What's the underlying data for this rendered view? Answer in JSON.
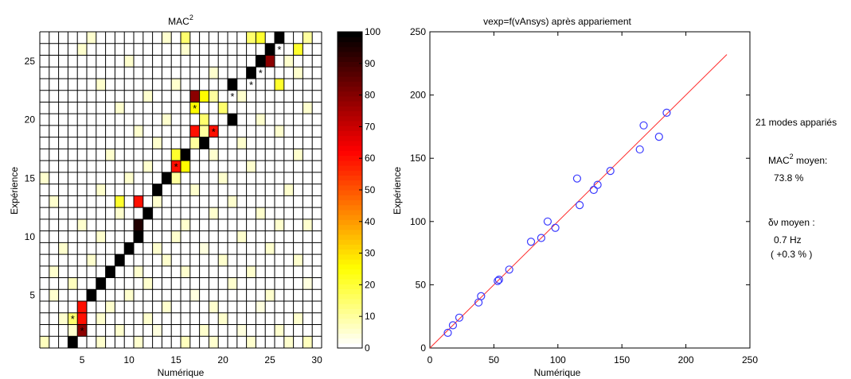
{
  "colors": {
    "colormap": "hot (reversed: white = 0, black = 100)",
    "scatter_marker": "#3b3bff",
    "fit_line": "#ff2a2a",
    "grid_line": "#000000"
  },
  "annotations": {
    "count": "21 modes appariés",
    "mac_label": "MAC",
    "mac_sup": "2",
    "mac_suffix": " moyen:",
    "mac_value": "73.8 %",
    "dv_label": "δν moyen :",
    "dv_value": "0.7 Hz",
    "dv_percent": "( +0.3 % )"
  },
  "chart_data": [
    {
      "type": "heatmap",
      "title": "MAC",
      "title_sup": "2",
      "xlabel": "Numérique",
      "ylabel": "Expérience",
      "xlim": [
        1,
        30
      ],
      "ylim": [
        1,
        27
      ],
      "xticks": [
        5,
        10,
        15,
        20,
        25,
        30
      ],
      "yticks": [
        5,
        10,
        15,
        20,
        25
      ],
      "colorbar": {
        "min": 0,
        "max": 100,
        "ticks": [
          0,
          10,
          20,
          30,
          40,
          50,
          60,
          70,
          80,
          90,
          100
        ]
      },
      "default_value": 0,
      "cells": [
        [
          1,
          1,
          6
        ],
        [
          4,
          1,
          100
        ],
        [
          5,
          2,
          80
        ],
        [
          7,
          1,
          5
        ],
        [
          11,
          1,
          5
        ],
        [
          16,
          1,
          6
        ],
        [
          19,
          1,
          4
        ],
        [
          23,
          1,
          5
        ],
        [
          27,
          1,
          4
        ],
        [
          29,
          1,
          6
        ],
        [
          4,
          2,
          5
        ],
        [
          5,
          3,
          60
        ],
        [
          9,
          2,
          4
        ],
        [
          13,
          2,
          3
        ],
        [
          18,
          2,
          5
        ],
        [
          22,
          2,
          3
        ],
        [
          26,
          2,
          4
        ],
        [
          4,
          3,
          15
        ],
        [
          3,
          3,
          4
        ],
        [
          7,
          3,
          4
        ],
        [
          12,
          3,
          5
        ],
        [
          20,
          3,
          4
        ],
        [
          28,
          3,
          5
        ],
        [
          5,
          4,
          60
        ],
        [
          8,
          4,
          5
        ],
        [
          14,
          4,
          4
        ],
        [
          19,
          4,
          5
        ],
        [
          24,
          4,
          3
        ],
        [
          6,
          5,
          100
        ],
        [
          2,
          5,
          5
        ],
        [
          10,
          5,
          4
        ],
        [
          17,
          5,
          3
        ],
        [
          25,
          5,
          4
        ],
        [
          7,
          6,
          100
        ],
        [
          4,
          6,
          6
        ],
        [
          12,
          6,
          5
        ],
        [
          21,
          6,
          4
        ],
        [
          29,
          6,
          3
        ],
        [
          8,
          7,
          100
        ],
        [
          2,
          7,
          4
        ],
        [
          11,
          7,
          5
        ],
        [
          16,
          7,
          4
        ],
        [
          23,
          7,
          5
        ],
        [
          9,
          8,
          100
        ],
        [
          6,
          8,
          5
        ],
        [
          14,
          8,
          4
        ],
        [
          20,
          8,
          5
        ],
        [
          28,
          8,
          4
        ],
        [
          10,
          9,
          100
        ],
        [
          3,
          9,
          4
        ],
        [
          13,
          9,
          5
        ],
        [
          18,
          9,
          3
        ],
        [
          25,
          9,
          5
        ],
        [
          11,
          10,
          100
        ],
        [
          7,
          10,
          4
        ],
        [
          15,
          10,
          5
        ],
        [
          22,
          10,
          4
        ],
        [
          11,
          11,
          95
        ],
        [
          5,
          11,
          4
        ],
        [
          16,
          11,
          5
        ],
        [
          26,
          11,
          4
        ],
        [
          29,
          11,
          5
        ],
        [
          12,
          12,
          100
        ],
        [
          9,
          12,
          5
        ],
        [
          19,
          12,
          4
        ],
        [
          24,
          12,
          5
        ],
        [
          11,
          13,
          60
        ],
        [
          9,
          13,
          20
        ],
        [
          13,
          13,
          5
        ],
        [
          21,
          13,
          4
        ],
        [
          2,
          13,
          4
        ],
        [
          13,
          14,
          100
        ],
        [
          7,
          14,
          5
        ],
        [
          17,
          14,
          4
        ],
        [
          27,
          14,
          5
        ],
        [
          14,
          15,
          100
        ],
        [
          15,
          15,
          10
        ],
        [
          10,
          15,
          4
        ],
        [
          20,
          15,
          5
        ],
        [
          1,
          15,
          4
        ],
        [
          15,
          16,
          60
        ],
        [
          16,
          16,
          25
        ],
        [
          12,
          16,
          5
        ],
        [
          23,
          16,
          4
        ],
        [
          16,
          17,
          100
        ],
        [
          15,
          17,
          20
        ],
        [
          8,
          17,
          4
        ],
        [
          19,
          17,
          5
        ],
        [
          28,
          17,
          4
        ],
        [
          18,
          18,
          100
        ],
        [
          17,
          18,
          10
        ],
        [
          13,
          18,
          5
        ],
        [
          22,
          18,
          4
        ],
        [
          17,
          19,
          60
        ],
        [
          19,
          19,
          60
        ],
        [
          18,
          19,
          10
        ],
        [
          11,
          19,
          4
        ],
        [
          26,
          19,
          5
        ],
        [
          21,
          20,
          100
        ],
        [
          18,
          20,
          15
        ],
        [
          14,
          20,
          4
        ],
        [
          24,
          20,
          5
        ],
        [
          17,
          21,
          25
        ],
        [
          20,
          21,
          15
        ],
        [
          9,
          21,
          4
        ],
        [
          29,
          21,
          5
        ],
        [
          17,
          22,
          80
        ],
        [
          18,
          22,
          25
        ],
        [
          19,
          22,
          10
        ],
        [
          12,
          22,
          4
        ],
        [
          22,
          22,
          5
        ],
        [
          21,
          23,
          100
        ],
        [
          15,
          23,
          5
        ],
        [
          26,
          23,
          20
        ],
        [
          7,
          23,
          4
        ],
        [
          23,
          24,
          100
        ],
        [
          19,
          24,
          5
        ],
        [
          28,
          24,
          4
        ],
        [
          24,
          25,
          100
        ],
        [
          25,
          25,
          80
        ],
        [
          10,
          25,
          4
        ],
        [
          27,
          25,
          5
        ],
        [
          25,
          26,
          100
        ],
        [
          16,
          26,
          5
        ],
        [
          28,
          26,
          20
        ],
        [
          5,
          26,
          4
        ],
        [
          26,
          27,
          100
        ],
        [
          16,
          27,
          15
        ],
        [
          24,
          27,
          20
        ],
        [
          23,
          27,
          15
        ],
        [
          14,
          27,
          5
        ],
        [
          29,
          27,
          10
        ],
        [
          6,
          27,
          4
        ]
      ],
      "matched_pairs": [
        [
          5,
          2
        ],
        [
          4,
          3
        ],
        [
          6,
          5
        ],
        [
          7,
          6
        ],
        [
          8,
          7
        ],
        [
          9,
          8
        ],
        [
          10,
          9
        ],
        [
          11,
          10
        ],
        [
          12,
          12
        ],
        [
          13,
          14
        ],
        [
          14,
          15
        ],
        [
          15,
          16
        ],
        [
          16,
          17
        ],
        [
          18,
          18
        ],
        [
          19,
          19
        ],
        [
          21,
          20
        ],
        [
          17,
          21
        ],
        [
          21,
          22
        ],
        [
          23,
          23
        ],
        [
          24,
          24
        ],
        [
          26,
          26
        ]
      ]
    },
    {
      "type": "scatter",
      "title": "vexp=f(vAnsys) après appariement",
      "xlabel": "Numérique",
      "ylabel": "Expérience",
      "xlim": [
        0,
        250
      ],
      "ylim": [
        0,
        250
      ],
      "xticks": [
        0,
        50,
        100,
        150,
        200,
        250
      ],
      "yticks": [
        0,
        50,
        100,
        150,
        200,
        250
      ],
      "points": [
        [
          14,
          12
        ],
        [
          18,
          18
        ],
        [
          23,
          24
        ],
        [
          38,
          36
        ],
        [
          40,
          41
        ],
        [
          53,
          53
        ],
        [
          54,
          54
        ],
        [
          62,
          62
        ],
        [
          79,
          84
        ],
        [
          87,
          87
        ],
        [
          92,
          100
        ],
        [
          98,
          95
        ],
        [
          115,
          134
        ],
        [
          117,
          113
        ],
        [
          128,
          125
        ],
        [
          131,
          129
        ],
        [
          141,
          140
        ],
        [
          164,
          157
        ],
        [
          167,
          176
        ],
        [
          179,
          167
        ],
        [
          185,
          186
        ]
      ],
      "fit_line": {
        "x": [
          0,
          232
        ],
        "y": [
          0,
          232
        ]
      }
    }
  ]
}
